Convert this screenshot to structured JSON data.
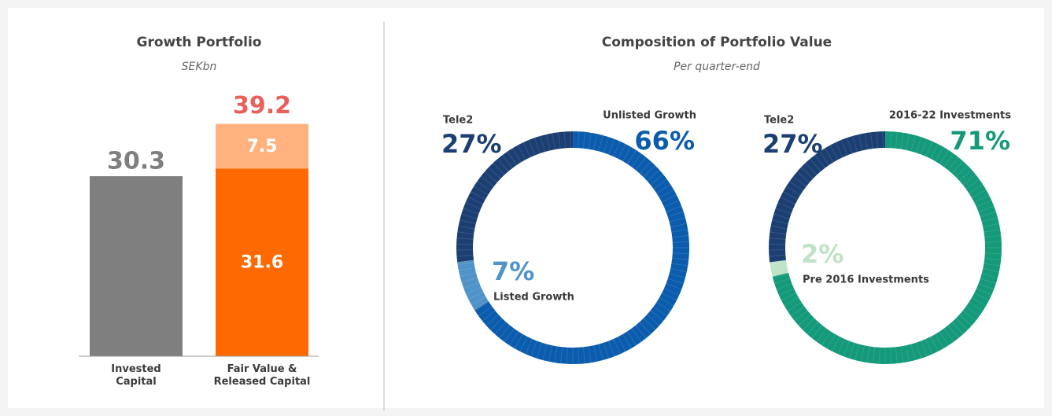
{
  "chart_data": [
    {
      "type": "bar",
      "title": "Growth Portfolio",
      "subtitle": "SEKbn",
      "categories": [
        "Invested\nCapital",
        "Fair Value &\nReleased Capital"
      ],
      "series": [
        {
          "color": "#7f7f7f",
          "values": [
            30.3,
            null
          ]
        },
        {
          "color": "#ff6a00",
          "values": [
            null,
            31.6
          ]
        },
        {
          "color": "#ffb27e",
          "values": [
            null,
            7.5
          ]
        }
      ],
      "totals": [
        null,
        39.2
      ],
      "total_color": "#e8605a",
      "ylim": [
        0,
        45
      ]
    },
    {
      "type": "donut",
      "title": "Composition of Portfolio Value",
      "subtitle": "Per quarter-end",
      "categories": [
        "Unlisted Growth",
        "Listed Growth",
        "Tele2"
      ],
      "values": [
        66,
        7,
        27
      ],
      "value_labels": [
        "66%",
        "7%",
        "27%"
      ],
      "colors": [
        "#0b5cad",
        "#4f93c8",
        "#1b3f73"
      ]
    },
    {
      "type": "donut",
      "categories": [
        "2016-22 Investments",
        "Pre 2016 Investments",
        "Tele2"
      ],
      "values": [
        71,
        2,
        27
      ],
      "value_labels": [
        "71%",
        "2%",
        "27%"
      ],
      "colors": [
        "#14997a",
        "#bfe3c6",
        "#1b3f73"
      ]
    }
  ]
}
